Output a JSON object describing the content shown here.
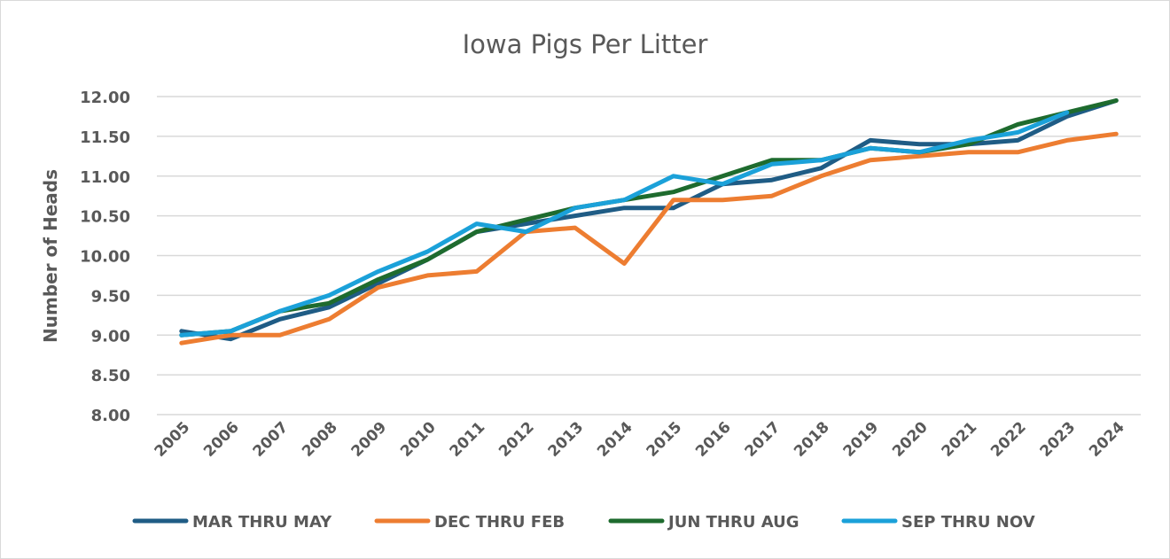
{
  "chart_data": {
    "type": "line",
    "title": "Iowa Pigs Per Litter",
    "xlabel": "",
    "ylabel": "Number of Heads",
    "ylim": [
      8.0,
      12.0
    ],
    "yticks": [
      "8.00",
      "8.50",
      "9.00",
      "9.50",
      "10.00",
      "10.50",
      "11.00",
      "11.50",
      "12.00"
    ],
    "grid": true,
    "legend_position": "bottom",
    "x": [
      "2005",
      "2006",
      "2007",
      "2008",
      "2009",
      "2010",
      "2011",
      "2012",
      "2013",
      "2014",
      "2015",
      "2016",
      "2017",
      "2018",
      "2019",
      "2020",
      "2021",
      "2022",
      "2023",
      "2024"
    ],
    "series": [
      {
        "name": "MAR THRU MAY",
        "color": "#1f5c85",
        "values": [
          9.05,
          8.95,
          9.2,
          9.35,
          9.65,
          9.95,
          10.3,
          10.4,
          10.5,
          10.6,
          10.6,
          10.9,
          10.95,
          11.1,
          11.45,
          11.4,
          11.4,
          11.45,
          11.75,
          11.95
        ]
      },
      {
        "name": "DEC THRU FEB",
        "color": "#ed7d31",
        "values": [
          8.9,
          9.0,
          9.0,
          9.2,
          9.6,
          9.75,
          9.8,
          10.3,
          10.35,
          9.9,
          10.7,
          10.7,
          10.75,
          11.0,
          11.2,
          11.25,
          11.3,
          11.3,
          11.45,
          11.53
        ]
      },
      {
        "name": "JUN THRU AUG",
        "color": "#1e6b2e",
        "values": [
          9.0,
          9.05,
          9.3,
          9.4,
          9.7,
          9.95,
          10.3,
          10.45,
          10.6,
          10.7,
          10.8,
          11.0,
          11.2,
          11.2,
          11.35,
          11.3,
          11.4,
          11.65,
          11.8,
          11.95
        ]
      },
      {
        "name": "SEP THRU NOV",
        "color": "#1ba1d9",
        "values": [
          9.0,
          9.05,
          9.3,
          9.5,
          9.8,
          10.05,
          10.4,
          10.3,
          10.6,
          10.7,
          11.0,
          10.9,
          11.15,
          11.2,
          11.35,
          11.3,
          11.45,
          11.55,
          11.8,
          null
        ]
      }
    ]
  }
}
